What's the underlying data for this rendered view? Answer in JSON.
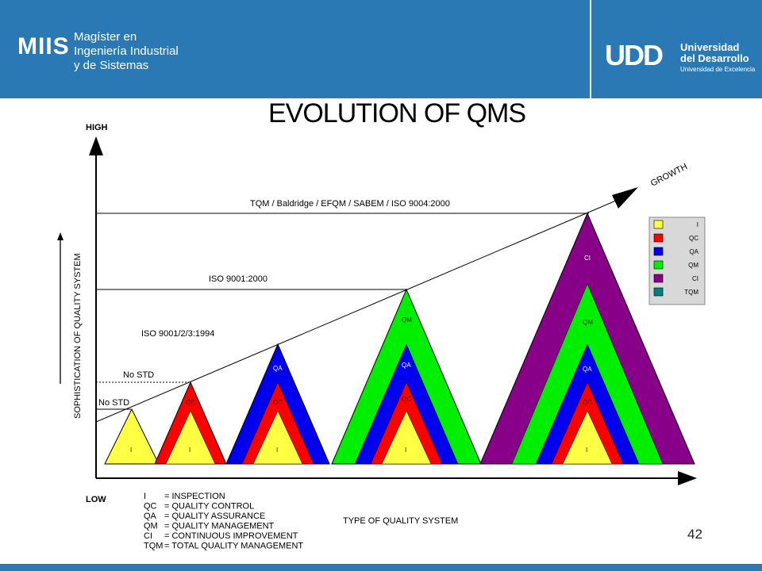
{
  "header": {
    "miis": "MIIS",
    "program_line1": "Magíster en",
    "program_line2": "Ingeniería Industrial",
    "program_line3": "y de Sistemas",
    "university_mark": "UDD",
    "university_line1": "Universidad",
    "university_line2": "del Desarrollo",
    "university_tagline": "Universidad de Excelencia"
  },
  "diagram": {
    "title": "EVOLUTION OF QMS",
    "y_high": "HIGH",
    "y_low": "LOW",
    "y_axis_label": "SOPHISTICATION OF QUALITY SYSTEM",
    "x_axis_label": "TYPE OF QUALITY SYSTEM",
    "growth": "GROWTH",
    "levels": {
      "no_std_1": "No STD",
      "no_std_2": "No STD",
      "iso_1994": "ISO 9001/2/3:1994",
      "iso_2000": "ISO 9001:2000",
      "tqm_line": "TQM / Baldridge / EFQM / SABEM / ISO 9004:2000"
    },
    "layers": {
      "i": "I",
      "qc": "QC",
      "qa": "QA",
      "qm": "QM",
      "ci": "CI"
    },
    "legend": [
      {
        "code": "I",
        "color": "#ffff44"
      },
      {
        "code": "QC",
        "color": "#ff0000"
      },
      {
        "code": "QA",
        "color": "#0000ee"
      },
      {
        "code": "QM",
        "color": "#00ee00"
      },
      {
        "code": "CI",
        "color": "#880088"
      },
      {
        "code": "TQM",
        "color": "#008080"
      }
    ],
    "key": [
      {
        "code": "I",
        "meaning": "= INSPECTION"
      },
      {
        "code": "QC",
        "meaning": "= QUALITY CONTROL"
      },
      {
        "code": "QA",
        "meaning": "= QUALITY ASSURANCE"
      },
      {
        "code": "QM",
        "meaning": "= QUALITY MANAGEMENT"
      },
      {
        "code": "CI",
        "meaning": "= CONTINUOUS IMPROVEMENT"
      },
      {
        "code": "TQM",
        "meaning": "= TOTAL QUALITY MANAGEMENT"
      }
    ]
  },
  "page_number": "42"
}
